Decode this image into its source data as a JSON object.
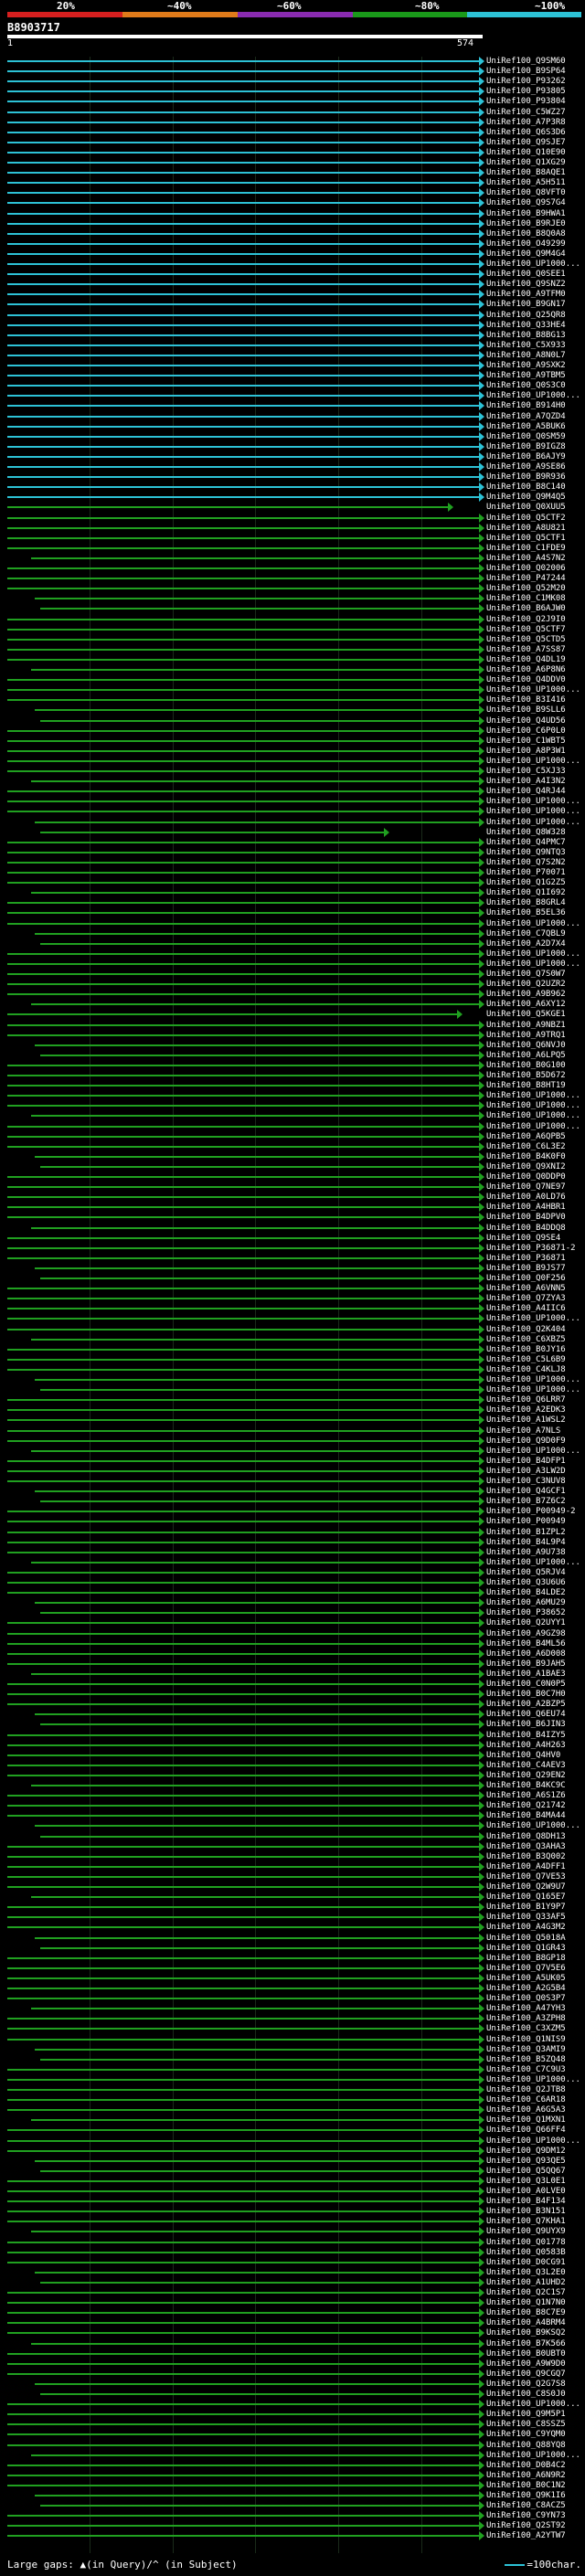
{
  "identity_scale": {
    "labels": [
      "20%",
      "~40%",
      "~60%",
      "~80%",
      "~100%"
    ],
    "colors": [
      "#d61f1f",
      "#e07b1a",
      "#8a2bb0",
      "#1a9a1a",
      "#2dc2d6"
    ]
  },
  "query": {
    "id": "B8903717",
    "start": "1",
    "end": "574"
  },
  "hit_colors": {
    "high": "#2dc2d6",
    "medium": "#20a020"
  },
  "hits": [
    "UniRef100_Q9SM60",
    "UniRef100_B9SP64",
    "UniRef100_P93262",
    "UniRef100_P93805",
    "UniRef100_P93804",
    "UniRef100_C5WZ27",
    "UniRef100_A7P3R8",
    "UniRef100_Q6S3D6",
    "UniRef100_Q9SJE7",
    "UniRef100_Q10E90",
    "UniRef100_Q1XG29",
    "UniRef100_B8AQE1",
    "UniRef100_A5H511",
    "UniRef100_Q8VFT0",
    "UniRef100_Q9S7G4",
    "UniRef100_B9HWA1",
    "UniRef100_B9RJE0",
    "UniRef100_B8Q0A8",
    "UniRef100_O49299",
    "UniRef100_Q9M4G4",
    "UniRef100_UP1000...",
    "UniRef100_Q0SEE1",
    "UniRef100_Q9SNZ2",
    "UniRef100_A9TFM0",
    "UniRef100_B9GN17",
    "UniRef100_Q25QR8",
    "UniRef100_Q33HE4",
    "UniRef100_B8BG13",
    "UniRef100_C5X933",
    "UniRef100_A8N0L7",
    "UniRef100_A9SXK2",
    "UniRef100_A9TBM5",
    "UniRef100_Q0S3C0",
    "UniRef100_UP1000...",
    "UniRef100_B914H0",
    "UniRef100_A7QZD4",
    "UniRef100_A5BUK6",
    "UniRef100_Q0SM59",
    "UniRef100_B9IGZ8",
    "UniRef100_B6AJY9",
    "UniRef100_A9SE86",
    "UniRef100_B9R936",
    "UniRef100_B8C140",
    "UniRef100_Q9M4Q5",
    "UniRef100_Q0XUU5",
    "UniRef100_Q5CTF2",
    "UniRef100_A8U821",
    "UniRef100_Q5CTF1",
    "UniRef100_C1FDE9",
    "UniRef100_A4S7N2",
    "UniRef100_Q02006",
    "UniRef100_P47244",
    "UniRef100_Q52M20",
    "UniRef100_C1MK08",
    "UniRef100_B6AJW0",
    "UniRef100_Q2J9I0",
    "UniRef100_Q5CTF7",
    "UniRef100_Q5CTD5",
    "UniRef100_A7SS87",
    "UniRef100_Q4DL19",
    "UniRef100_A6P8N6",
    "UniRef100_Q4DDV0",
    "UniRef100_UP1000...",
    "UniRef100_B3I416",
    "UniRef100_B9SLL6",
    "UniRef100_Q4UD56",
    "UniRef100_C6P0L0",
    "UniRef100_C1WBT5",
    "UniRef100_A8P3W1",
    "UniRef100_UP1000...",
    "UniRef100_C5XJ33",
    "UniRef100_A4I3N2",
    "UniRef100_Q4RJ44",
    "UniRef100_UP1000...",
    "UniRef100_UP1000...",
    "UniRef100_UP1000...",
    "UniRef100_Q8W328",
    "UniRef100_Q4PMC7",
    "UniRef100_Q9NTQ3",
    "UniRef100_Q7S2N2",
    "UniRef100_P70071",
    "UniRef100_Q1G2Z5",
    "UniRef100_Q1I692",
    "UniRef100_B8GRL4",
    "UniRef100_B5EL36",
    "UniRef100_UP1000...",
    "UniRef100_C7QBL9",
    "UniRef100_A2D7X4",
    "UniRef100_UP1000...",
    "UniRef100_UP1000...",
    "UniRef100_Q7S0W7",
    "UniRef100_Q2UZR2",
    "UniRef100_A9B962",
    "UniRef100_A6XY12",
    "UniRef100_Q5KGE1",
    "UniRef100_A9NBZ1",
    "UniRef100_A9TRQ1",
    "UniRef100_Q6NVJ0",
    "UniRef100_A6LPQ5",
    "UniRef100_B0G100",
    "UniRef100_B5D672",
    "UniRef100_B8HT19",
    "UniRef100_UP1000...",
    "UniRef100_UP1000...",
    "UniRef100_UP1000...",
    "UniRef100_UP1000...",
    "UniRef100_A6QPB5",
    "UniRef100_C6L3E2",
    "UniRef100_B4K0F0",
    "UniRef100_Q9XNI2",
    "UniRef100_Q0DDP0",
    "UniRef100_Q7NE97",
    "UniRef100_A0LD76",
    "UniRef100_A4HBR1",
    "UniRef100_B4DPV0",
    "UniRef100_B4DDQ8",
    "UniRef100_Q9SE4",
    "UniRef100_P36871-2",
    "UniRef100_P36871",
    "UniRef100_B9JS77",
    "UniRef100_Q0F256",
    "UniRef100_A6VNN5",
    "UniRef100_Q7ZYA3",
    "UniRef100_A4IIC6",
    "UniRef100_UP1000...",
    "UniRef100_Q2K404",
    "UniRef100_C6XBZ5",
    "UniRef100_B0JY16",
    "UniRef100_C5L6B9",
    "UniRef100_C4KLJ8",
    "UniRef100_UP1000...",
    "UniRef100_UP1000...",
    "UniRef100_Q6LRR7",
    "UniRef100_A2EDK3",
    "UniRef100_A1WSL2",
    "UniRef100_A7NLS",
    "UniRef100_Q9D0F9",
    "UniRef100_UP1000...",
    "UniRef100_B4DFP1",
    "UniRef100_A3LW2D",
    "UniRef100_C3NUV8",
    "UniRef100_Q4GCF1",
    "UniRef100_B7Z6C2",
    "UniRef100_P00949-2",
    "UniRef100_P00949",
    "UniRef100_B1ZPL2",
    "UniRef100_B4L9P4",
    "UniRef100_A9U738",
    "UniRef100_UP1000...",
    "UniRef100_Q5RJV4",
    "UniRef100_Q3U6U6",
    "UniRef100_B4LDE2",
    "UniRef100_A6MU29",
    "UniRef100_P38652",
    "UniRef100_Q2UYY1",
    "UniRef100_A9GZ98",
    "UniRef100_B4ML56",
    "UniRef100_A6D008",
    "UniRef100_B9JAH5",
    "UniRef100_A1BAE3",
    "UniRef100_C0N0P5",
    "UniRef100_B0C7H0",
    "UniRef100_A2BZP5",
    "UniRef100_Q6EU74",
    "UniRef100_B6JIN3",
    "UniRef100_B4IZY5",
    "UniRef100_A4H263",
    "UniRef100_Q4HV0",
    "UniRef100_C4AEV3",
    "UniRef100_Q29EN2",
    "UniRef100_B4KC9C",
    "UniRef100_A6S1Z6",
    "UniRef100_Q21742",
    "UniRef100_B4MA44",
    "UniRef100_UP1000...",
    "UniRef100_Q8DH13",
    "UniRef100_Q3AHA3",
    "UniRef100_B3Q002",
    "UniRef100_A4DFF1",
    "UniRef100_Q7VE53",
    "UniRef100_Q2W9U7",
    "UniRef100_Q165E7",
    "UniRef100_B1Y9P7",
    "UniRef100_Q33AF5",
    "UniRef100_A4G3M2",
    "UniRef100_Q5018A",
    "UniRef100_Q1GR43",
    "UniRef100_B8GP18",
    "UniRef100_Q7V5E6",
    "UniRef100_A5UK05",
    "UniRef100_A2G5B4",
    "UniRef100_Q0S3P7",
    "UniRef100_A47YH3",
    "UniRef100_A3ZPH8",
    "UniRef100_C3XZM5",
    "UniRef100_Q1NIS9",
    "UniRef100_Q3AMI9",
    "UniRef100_B5ZQ48",
    "UniRef100_C7C9U3",
    "UniRef100_UP1000...",
    "UniRef100_Q2JTB8",
    "UniRef100_C6AR18",
    "UniRef100_A6G5A3",
    "UniRef100_Q1MXN1",
    "UniRef100_Q66FF4",
    "UniRef100_UP1000...",
    "UniRef100_Q9DM12",
    "UniRef100_Q93QE5",
    "UniRef100_Q5QQ67",
    "UniRef100_Q3L0E1",
    "UniRef100_A0LVE0",
    "UniRef100_B4F134",
    "UniRef100_B3N151",
    "UniRef100_Q7KHA1",
    "UniRef100_Q9UYX9",
    "UniRef100_Q01778",
    "UniRef100_Q0583B",
    "UniRef100_D0CG91",
    "UniRef100_Q3L2E0",
    "UniRef100_A1UHD2",
    "UniRef100_Q2C1S7",
    "UniRef100_Q1N7N0",
    "UniRef100_B8C7E9",
    "UniRef100_A4BRM4",
    "UniRef100_B9KSQ2",
    "UniRef100_B7K566",
    "UniRef100_B0UBT0",
    "UniRef100_A9W9D0",
    "UniRef100_Q9CGQ7",
    "UniRef100_Q2G7S8",
    "UniRef100_C8S0J0",
    "UniRef100_UP1000...",
    "UniRef100_Q9M5P1",
    "UniRef100_C8SSZ5",
    "UniRef100_C9YQM0",
    "UniRef100_Q88YQ8",
    "UniRef100_UP1000...",
    "UniRef100_D0B4C2",
    "UniRef100_A6N9R2",
    "UniRef100_B0C1N2",
    "UniRef100_Q9K1I6",
    "UniRef100_C8ACZ5",
    "UniRef100_C9YN73",
    "UniRef100_Q2ST92",
    "UniRef100_A2YTW7"
  ],
  "legend": {
    "left": "Large gaps: ▲(in Query)/^ (in Subject)",
    "right": "=100char."
  }
}
